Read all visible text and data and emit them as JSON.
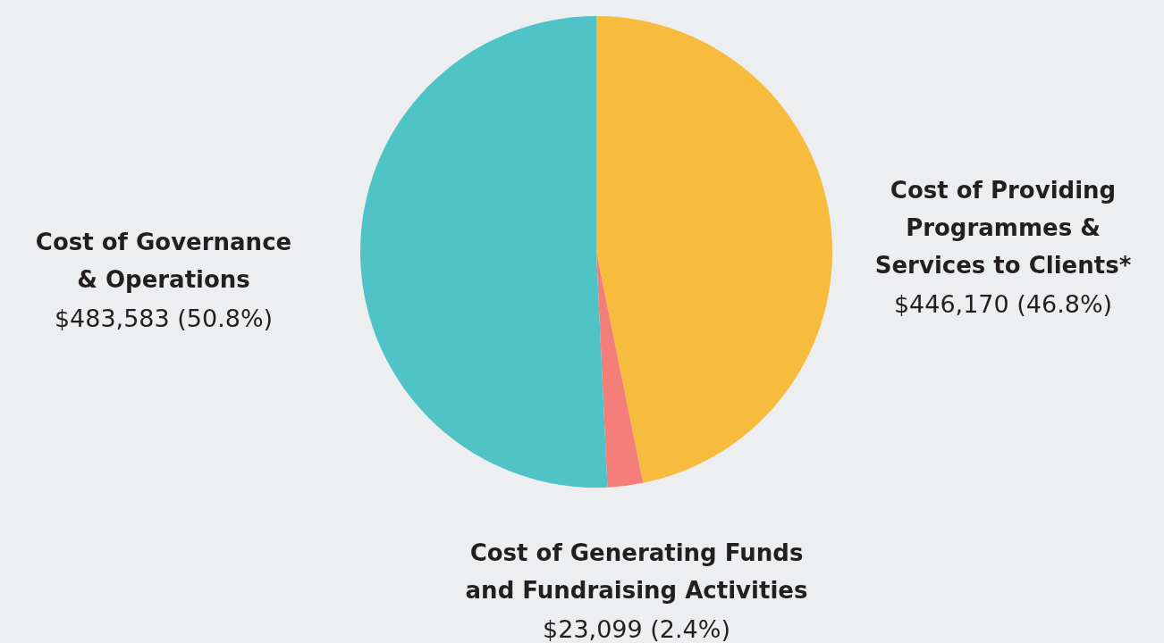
{
  "chart_data": {
    "type": "pie",
    "categories": [
      "Cost of Providing Programmes & Services to Clients*",
      "Cost of Generating Funds and Fundraising Activities",
      "Cost of Governance & Operations"
    ],
    "values": [
      446170,
      23099,
      483583
    ],
    "colors": [
      "#f7bc3e",
      "#f47f7a",
      "#50c3c6"
    ],
    "value_labels": [
      "$446,170 (46.8%)",
      "$23,099 (2.4%)",
      "$483,583 (50.8%)"
    ]
  }
}
